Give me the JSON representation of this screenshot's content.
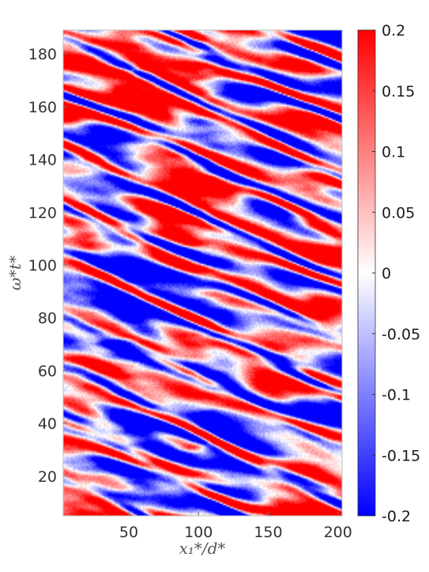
{
  "chart_data": {
    "type": "heatmap",
    "title": "",
    "xlabel": "x₁*/d*",
    "ylabel": "ω*t*",
    "xlim": [
      3,
      203
    ],
    "ylim": [
      5,
      189
    ],
    "xticks": [
      50,
      100,
      150,
      200
    ],
    "yticks": [
      20,
      40,
      60,
      80,
      100,
      120,
      140,
      160,
      180
    ],
    "colorbar": {
      "range": [
        -0.2,
        0.2
      ],
      "ticks": [
        {
          "value": 0.2,
          "label": "0.2"
        },
        {
          "value": 0.15,
          "label": "0.15"
        },
        {
          "value": 0.1,
          "label": "0.1"
        },
        {
          "value": 0.05,
          "label": "0.05"
        },
        {
          "value": 0,
          "label": "0"
        },
        {
          "value": -0.05,
          "label": "-0.05"
        },
        {
          "value": -0.1,
          "label": "-0.1"
        },
        {
          "value": -0.15,
          "label": "-0.15"
        },
        {
          "value": -0.2,
          "label": "-0.2"
        }
      ],
      "colormap": [
        "#0000ff",
        "#ffffff",
        "#ff0000"
      ]
    },
    "pattern": {
      "description_free": true,
      "features": [
        {
          "x": 20,
          "amp": 0.1
        },
        {
          "x": 55,
          "amp": -0.12
        },
        {
          "x": 100,
          "amp": 0.09
        },
        {
          "x": 108,
          "amp": -0.1
        },
        {
          "x": 160,
          "amp": -0.07
        },
        {
          "x": 185,
          "amp": 0.06
        }
      ],
      "bands": [
        {
          "y": 175,
          "x": 55,
          "amp": 0.16
        },
        {
          "y": 165,
          "x": 55,
          "amp": 0.14
        },
        {
          "y": 185,
          "x": 108,
          "amp": -0.15
        },
        {
          "y": 175,
          "x": 108,
          "amp": -0.12
        },
        {
          "y": 140,
          "x": 20,
          "amp": 0.1
        },
        {
          "y": 120,
          "x": 15,
          "amp": 0.1
        },
        {
          "y": 110,
          "x": 20,
          "amp": 0.12
        },
        {
          "y": 100,
          "x": 50,
          "amp": -0.12
        },
        {
          "y": 80,
          "x": 100,
          "amp": 0.12
        },
        {
          "y": 70,
          "x": 25,
          "amp": 0.14
        },
        {
          "y": 70,
          "x": 50,
          "amp": -0.12
        },
        {
          "y": 65,
          "x": 165,
          "amp": -0.14
        },
        {
          "y": 40,
          "x": 55,
          "amp": -0.14
        },
        {
          "y": 30,
          "x": 100,
          "amp": 0.1
        },
        {
          "y": 15,
          "x": 55,
          "amp": -0.15
        },
        {
          "y": 10,
          "x": 150,
          "amp": 0.1
        }
      ]
    }
  }
}
